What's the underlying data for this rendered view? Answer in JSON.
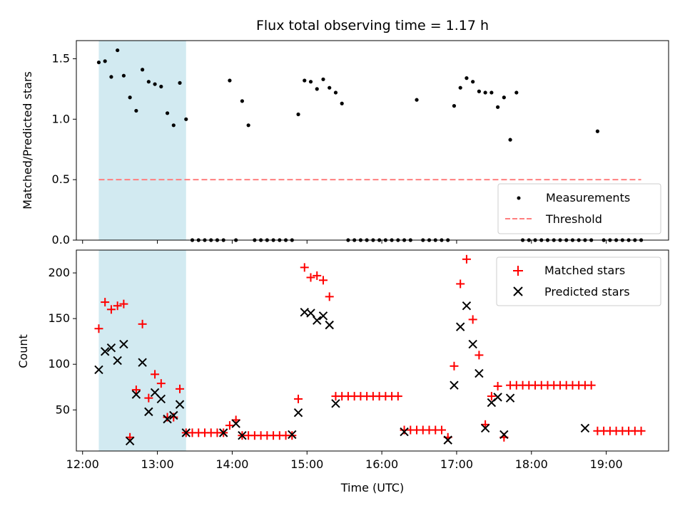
{
  "chart_data": [
    {
      "type": "scatter",
      "title": "Flux total observing time = 1.17 h",
      "xlabel": "",
      "ylabel": "Matched/Predicted stars",
      "xlim": [
        "11:55",
        "19:50"
      ],
      "ylim": [
        0,
        1.65
      ],
      "yticks": [
        "0.0",
        "0.5",
        "1.0",
        "1.5"
      ],
      "ytick_values": [
        0,
        0.5,
        1.0,
        1.5
      ],
      "grid": false,
      "legend_placement": "lower-right",
      "highlight_span": [
        "12:13",
        "13:23"
      ],
      "highlight_color": "#add8e6",
      "series": [
        {
          "name": "Measurements",
          "marker": "dot",
          "color": "#000000",
          "x": [
            "12:13",
            "12:18",
            "12:23",
            "12:28",
            "12:33",
            "12:38",
            "12:43",
            "12:48",
            "12:53",
            "12:58",
            "13:03",
            "13:08",
            "13:13",
            "13:18",
            "13:23",
            "13:28",
            "13:33",
            "13:38",
            "13:43",
            "13:48",
            "13:53",
            "13:58",
            "14:03",
            "14:08",
            "14:13",
            "14:18",
            "14:23",
            "14:28",
            "14:33",
            "14:38",
            "14:43",
            "14:48",
            "14:53",
            "14:58",
            "15:03",
            "15:08",
            "15:13",
            "15:18",
            "15:23",
            "15:28",
            "15:33",
            "15:38",
            "15:43",
            "15:48",
            "15:53",
            "15:58",
            "16:03",
            "16:08",
            "16:13",
            "16:18",
            "16:23",
            "16:28",
            "16:33",
            "16:38",
            "16:43",
            "16:48",
            "16:53",
            "16:58",
            "17:03",
            "17:08",
            "17:13",
            "17:18",
            "17:23",
            "17:28",
            "17:33",
            "17:38",
            "17:43",
            "17:48",
            "17:53",
            "17:58",
            "18:03",
            "18:08",
            "18:13",
            "18:18",
            "18:23",
            "18:28",
            "18:33",
            "18:38",
            "18:43",
            "18:48",
            "18:53",
            "18:58",
            "19:03",
            "19:08",
            "19:13",
            "19:18",
            "19:23",
            "19:28"
          ],
          "y": [
            1.47,
            1.48,
            1.35,
            1.57,
            1.36,
            1.18,
            1.07,
            1.41,
            1.31,
            1.29,
            1.27,
            1.05,
            0.95,
            1.3,
            1.0,
            0,
            0,
            0,
            0,
            0,
            0,
            1.32,
            0,
            1.15,
            0.95,
            0,
            0,
            0,
            0,
            0,
            0,
            0,
            1.04,
            1.32,
            1.31,
            1.25,
            1.33,
            1.26,
            1.22,
            1.13,
            0,
            0,
            0,
            0,
            0,
            0,
            0,
            0,
            0,
            0,
            0,
            1.16,
            0,
            0,
            0,
            0,
            0,
            1.11,
            1.26,
            1.34,
            1.31,
            1.23,
            1.22,
            1.22,
            1.1,
            1.18,
            0.83,
            1.22,
            0,
            0,
            0,
            0,
            0,
            0,
            0,
            0,
            0,
            0,
            0,
            0,
            0.9,
            0,
            0,
            0,
            0,
            0,
            0,
            0
          ]
        },
        {
          "name": "Threshold",
          "style": "dashed",
          "color": "#ff7f7f",
          "x": [
            "12:13",
            "19:28"
          ],
          "y": [
            0.5,
            0.5
          ]
        }
      ]
    },
    {
      "type": "scatter",
      "title": "",
      "xlabel": "Time (UTC)",
      "ylabel": "Count",
      "xlim": [
        "11:55",
        "19:50"
      ],
      "ylim": [
        5,
        225
      ],
      "yticks": [
        "50",
        "100",
        "150",
        "200"
      ],
      "ytick_values": [
        50,
        100,
        150,
        200
      ],
      "xticks": [
        "12:00",
        "13:00",
        "14:00",
        "15:00",
        "16:00",
        "17:00",
        "18:00",
        "19:00"
      ],
      "grid": false,
      "legend_placement": "top-right",
      "highlight_span": [
        "12:13",
        "13:23"
      ],
      "highlight_color": "#add8e6",
      "series": [
        {
          "name": "Matched stars",
          "marker": "plus",
          "color": "#ff0000",
          "x": [
            "12:13",
            "12:18",
            "12:23",
            "12:28",
            "12:33",
            "12:38",
            "12:43",
            "12:48",
            "12:53",
            "12:58",
            "13:03",
            "13:08",
            "13:13",
            "13:18",
            "13:23",
            "13:28",
            "13:33",
            "13:38",
            "13:43",
            "13:48",
            "13:53",
            "13:58",
            "14:03",
            "14:08",
            "14:13",
            "14:18",
            "14:23",
            "14:28",
            "14:33",
            "14:38",
            "14:43",
            "14:48",
            "14:53",
            "14:58",
            "15:03",
            "15:08",
            "15:13",
            "15:18",
            "15:23",
            "15:28",
            "15:33",
            "15:38",
            "15:43",
            "15:48",
            "15:53",
            "15:58",
            "16:03",
            "16:08",
            "16:13",
            "16:18",
            "16:23",
            "16:28",
            "16:33",
            "16:38",
            "16:43",
            "16:48",
            "16:53",
            "16:58",
            "17:03",
            "17:08",
            "17:13",
            "17:18",
            "17:23",
            "17:28",
            "17:33",
            "17:38",
            "17:43",
            "17:48",
            "17:53",
            "17:58",
            "18:03",
            "18:08",
            "18:13",
            "18:18",
            "18:23",
            "18:28",
            "18:33",
            "18:38",
            "18:43",
            "18:48",
            "18:53",
            "18:58",
            "19:03",
            "19:08",
            "19:13",
            "19:18",
            "19:23",
            "19:28"
          ],
          "y": [
            139,
            168,
            160,
            164,
            166,
            20,
            72,
            144,
            63,
            89,
            79,
            42,
            42,
            73,
            25,
            25,
            25,
            25,
            25,
            25,
            25,
            33,
            39,
            22,
            22,
            22,
            22,
            22,
            22,
            22,
            22,
            22,
            62,
            206,
            195,
            197,
            192,
            174,
            65,
            65,
            65,
            65,
            65,
            65,
            65,
            65,
            65,
            65,
            65,
            28,
            28,
            28,
            28,
            28,
            28,
            28,
            20,
            98,
            188,
            215,
            149,
            110,
            34,
            65,
            76,
            20,
            77,
            77,
            77,
            77,
            77,
            77,
            77,
            77,
            77,
            77,
            77,
            77,
            77,
            77,
            27,
            27,
            27,
            27,
            27,
            27,
            27,
            27
          ]
        },
        {
          "name": "Predicted stars",
          "marker": "x",
          "color": "#000000",
          "x": [
            "12:13",
            "12:18",
            "12:23",
            "12:28",
            "12:33",
            "12:38",
            "12:43",
            "12:48",
            "12:53",
            "12:58",
            "13:03",
            "13:08",
            "13:13",
            "13:18",
            "13:23",
            "13:53",
            "14:03",
            "14:08",
            "14:48",
            "14:53",
            "14:58",
            "15:03",
            "15:08",
            "15:13",
            "15:18",
            "15:23",
            "16:18",
            "16:53",
            "16:58",
            "17:03",
            "17:08",
            "17:13",
            "17:18",
            "17:23",
            "17:28",
            "17:33",
            "17:38",
            "17:43",
            "18:43"
          ],
          "y": [
            94,
            114,
            118,
            104,
            122,
            16,
            67,
            102,
            48,
            69,
            62,
            40,
            44,
            56,
            25,
            25,
            35,
            22,
            23,
            47,
            157,
            156,
            148,
            153,
            143,
            57,
            26,
            17,
            77,
            141,
            164,
            122,
            90,
            30,
            58,
            64,
            23,
            63,
            30
          ]
        }
      ]
    }
  ]
}
